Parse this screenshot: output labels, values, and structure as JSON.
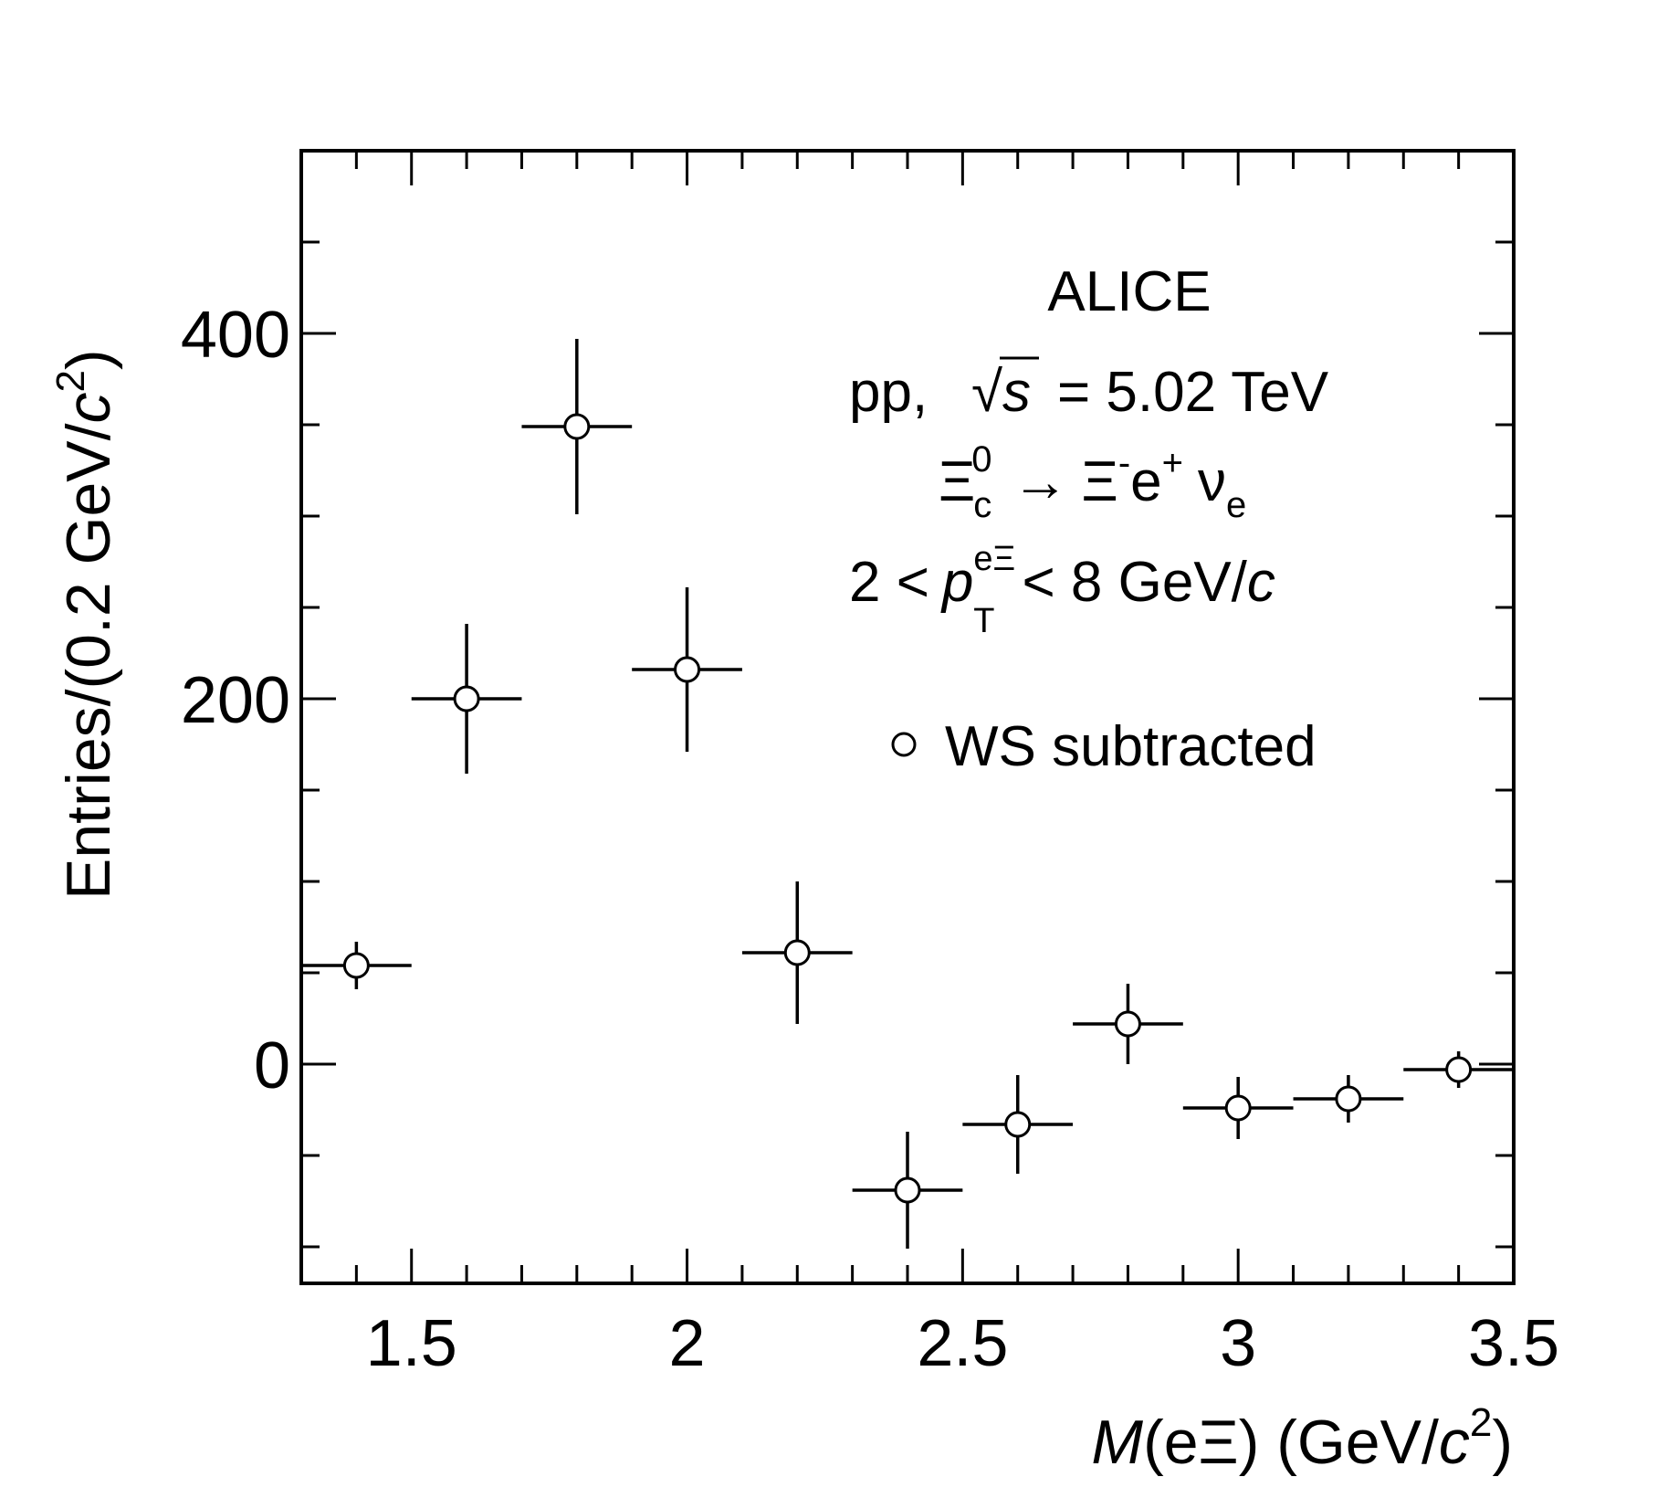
{
  "chart_data": {
    "type": "scatter",
    "xlim": [
      1.3,
      3.5
    ],
    "ylim": [
      -120,
      500
    ],
    "x_ticks": [
      1.5,
      2,
      2.5,
      3,
      3.5
    ],
    "x_tick_labels": [
      "1.5",
      "2",
      "2.5",
      "3",
      "3.5"
    ],
    "y_ticks": [
      0,
      200,
      400
    ],
    "y_tick_labels": [
      "0",
      "200",
      "400"
    ],
    "xlabel": {
      "main": "M",
      "rest": "(eΞ) (GeV/",
      "c": "c",
      "sup": "2",
      "close": ")"
    },
    "ylabel": {
      "main": "Entries/(0.2 GeV/",
      "c": "c",
      "sup": "2",
      "close": ")"
    },
    "annotations": {
      "experiment": "ALICE",
      "system": {
        "pre": "pp,",
        "sqrt": "√",
        "s": "s",
        "post": "= 5.02 TeV"
      },
      "decay": {
        "xi": "Ξ",
        "sub_c": "c",
        "sup_0": "0",
        "arrow": "→",
        "xi2": "Ξ",
        "sup_minus": "-",
        "e": "e",
        "sup_plus": "+",
        "nu": "ν",
        "sub_e": "e"
      },
      "pt_range": {
        "pre": "2 <",
        "p": "p",
        "sup": "eΞ",
        "sub": "T",
        "post": "< 8 GeV/",
        "c": "c"
      }
    },
    "grid": false,
    "legend": {
      "placement": "top-right",
      "entries": [
        "WS subtracted"
      ]
    },
    "series": [
      {
        "name": "WS subtracted",
        "marker": "open-circle",
        "x": [
          1.4,
          1.6,
          1.8,
          2.0,
          2.2,
          2.4,
          2.6,
          2.8,
          3.0,
          3.2,
          3.4
        ],
        "y": [
          54,
          200,
          349,
          216,
          61,
          -69,
          -33,
          22,
          -24,
          -19,
          -3
        ],
        "x_err": [
          0.1,
          0.1,
          0.1,
          0.1,
          0.1,
          0.1,
          0.1,
          0.1,
          0.1,
          0.1,
          0.1
        ],
        "y_err": [
          13,
          41,
          48,
          45,
          39,
          32,
          27,
          22,
          17,
          13,
          10
        ]
      }
    ]
  },
  "colors": {
    "axis": "#000000",
    "marker_fill": "#ffffff",
    "marker_stroke": "#000000"
  }
}
